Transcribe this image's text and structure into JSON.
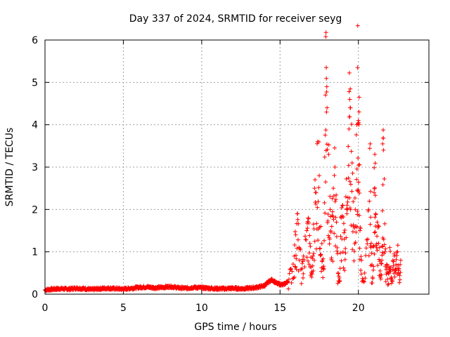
{
  "chart_data": {
    "type": "scatter",
    "title": "Day 337 of 2024, SRMTID for receiver seyg",
    "xlabel": "GPS time / hours",
    "ylabel": "SRMTID / TECUs",
    "xlim": [
      0,
      24.5
    ],
    "ylim": [
      0,
      6
    ],
    "x_ticks": [
      "0",
      "5",
      "10",
      "15",
      "20"
    ],
    "y_ticks": [
      "0",
      "1",
      "2",
      "3",
      "4",
      "5",
      "6"
    ],
    "grid": true,
    "marker": "+",
    "colors": {
      "series": "#ff0000",
      "grid": "#a0a0a0",
      "axes": "#000000"
    },
    "series": [
      {
        "name": "SRMTID",
        "description": "dense quiet baseline ~0.1-0.2 TECU from 0-14.3h, bump to ~0.3 at 14.5h, disturbed 15.5-22.7h",
        "points": [
          [
            0.0,
            0.1
          ],
          [
            0.5,
            0.12
          ],
          [
            1.0,
            0.13
          ],
          [
            1.5,
            0.12
          ],
          [
            2.0,
            0.14
          ],
          [
            2.5,
            0.13
          ],
          [
            3.0,
            0.11
          ],
          [
            3.5,
            0.13
          ],
          [
            4.0,
            0.14
          ],
          [
            4.5,
            0.13
          ],
          [
            5.0,
            0.12
          ],
          [
            5.5,
            0.14
          ],
          [
            6.0,
            0.16
          ],
          [
            6.5,
            0.17
          ],
          [
            7.0,
            0.15
          ],
          [
            7.5,
            0.16
          ],
          [
            8.0,
            0.18
          ],
          [
            8.5,
            0.15
          ],
          [
            9.0,
            0.14
          ],
          [
            9.5,
            0.16
          ],
          [
            10.0,
            0.15
          ],
          [
            10.5,
            0.14
          ],
          [
            11.0,
            0.13
          ],
          [
            11.5,
            0.13
          ],
          [
            12.0,
            0.14
          ],
          [
            12.5,
            0.13
          ],
          [
            13.0,
            0.14
          ],
          [
            13.5,
            0.16
          ],
          [
            14.0,
            0.2
          ],
          [
            14.3,
            0.3
          ],
          [
            14.5,
            0.34
          ],
          [
            14.8,
            0.25
          ],
          [
            15.2,
            0.22
          ],
          [
            15.5,
            0.3
          ],
          [
            15.7,
            0.6
          ],
          [
            15.9,
            0.9
          ],
          [
            16.0,
            1.4
          ],
          [
            16.1,
            1.9
          ],
          [
            16.2,
            1.1
          ],
          [
            16.4,
            0.6
          ],
          [
            16.5,
            0.9
          ],
          [
            16.7,
            1.5
          ],
          [
            16.8,
            1.8
          ],
          [
            16.9,
            1.2
          ],
          [
            17.0,
            0.5
          ],
          [
            17.1,
            0.9
          ],
          [
            17.2,
            2.5
          ],
          [
            17.3,
            2.4
          ],
          [
            17.4,
            3.6
          ],
          [
            17.5,
            2.8
          ],
          [
            17.6,
            1.6
          ],
          [
            17.7,
            0.8
          ],
          [
            17.8,
            0.6
          ],
          [
            17.9,
            4.7
          ],
          [
            17.95,
            5.35
          ],
          [
            18.0,
            4.4
          ],
          [
            18.1,
            3.3
          ],
          [
            18.2,
            2.0
          ],
          [
            18.3,
            1.6
          ],
          [
            18.4,
            2.5
          ],
          [
            18.5,
            3.0
          ],
          [
            18.6,
            1.7
          ],
          [
            18.7,
            0.5
          ],
          [
            18.8,
            0.3
          ],
          [
            18.9,
            1.8
          ],
          [
            19.0,
            2.1
          ],
          [
            19.1,
            1.3
          ],
          [
            19.2,
            2.3
          ],
          [
            19.3,
            2.0
          ],
          [
            19.4,
            3.9
          ],
          [
            19.45,
            4.6
          ],
          [
            19.5,
            4.4
          ],
          [
            19.6,
            3.1
          ],
          [
            19.7,
            1.6
          ],
          [
            19.8,
            2.0
          ],
          [
            19.9,
            4.0
          ],
          [
            19.95,
            5.35
          ],
          [
            20.0,
            4.1
          ],
          [
            20.05,
            4.65
          ],
          [
            20.1,
            1.5
          ],
          [
            20.2,
            0.8
          ],
          [
            20.4,
            0.5
          ],
          [
            20.6,
            1.3
          ],
          [
            20.75,
            3.55
          ],
          [
            20.8,
            1.1
          ],
          [
            20.9,
            0.4
          ],
          [
            21.0,
            2.4
          ],
          [
            21.05,
            3.3
          ],
          [
            21.1,
            1.9
          ],
          [
            21.2,
            1.7
          ],
          [
            21.3,
            1.6
          ],
          [
            21.4,
            0.4
          ],
          [
            21.5,
            0.8
          ],
          [
            21.55,
            3.55
          ],
          [
            21.6,
            3.4
          ],
          [
            21.7,
            1.0
          ],
          [
            21.8,
            0.7
          ],
          [
            21.9,
            0.5
          ],
          [
            22.0,
            1.1
          ],
          [
            22.1,
            0.4
          ],
          [
            22.2,
            0.8
          ],
          [
            22.3,
            0.9
          ],
          [
            22.4,
            0.7
          ],
          [
            22.5,
            1.0
          ],
          [
            22.6,
            0.6
          ],
          [
            22.7,
            0.8
          ]
        ]
      }
    ]
  }
}
